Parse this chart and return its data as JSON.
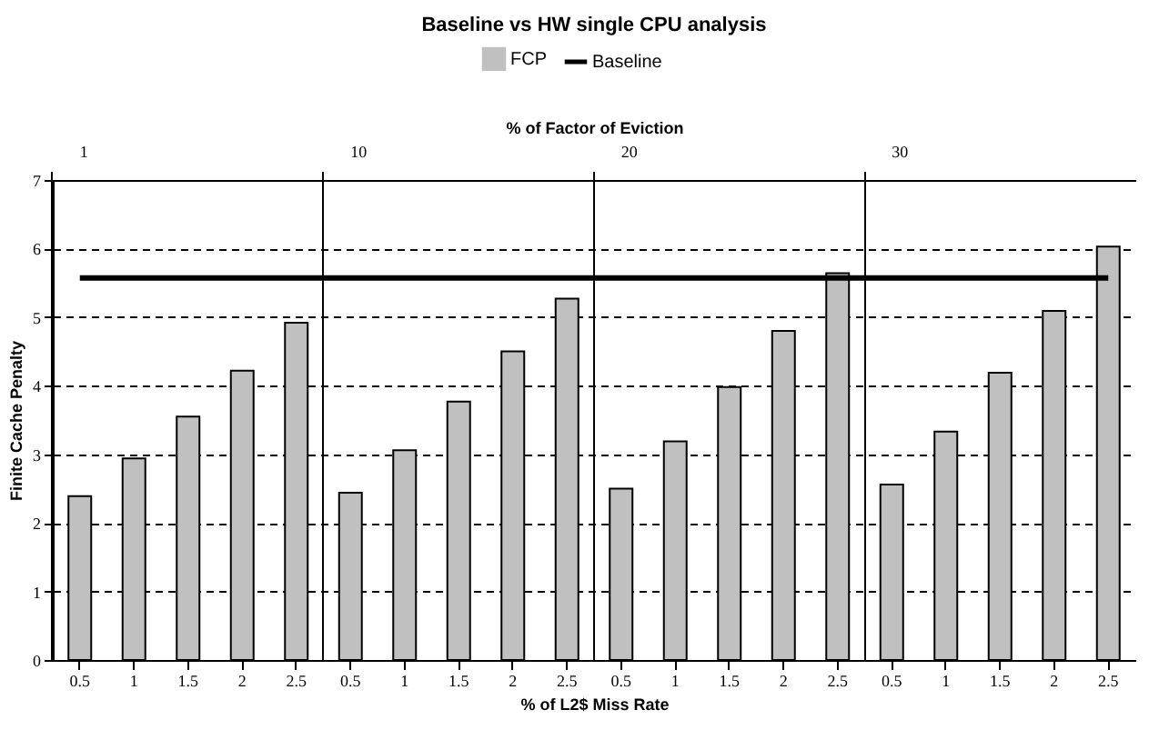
{
  "chart_data": {
    "type": "bar",
    "title": "Baseline vs HW single CPU analysis",
    "categories": [
      "0.5",
      "1",
      "1.5",
      "2",
      "2.5",
      "0.5",
      "1",
      "1.5",
      "2",
      "2.5",
      "0.5",
      "1",
      "1.5",
      "2",
      "2.5",
      "0.5",
      "1",
      "1.5",
      "2",
      "2.5"
    ],
    "series": [
      {
        "name": "FCP",
        "color": "#c0c0c0",
        "values": [
          2.39,
          2.94,
          3.55,
          4.22,
          4.92,
          2.44,
          3.06,
          3.77,
          4.5,
          5.27,
          2.5,
          3.19,
          3.98,
          4.8,
          5.64,
          2.56,
          3.33,
          4.19,
          5.09,
          6.03
        ]
      },
      {
        "name": "Baseline",
        "type": "line",
        "color": "#000000",
        "values": [
          5.57,
          5.57,
          5.57,
          5.57,
          5.57,
          5.57,
          5.57,
          5.57,
          5.57,
          5.57,
          5.57,
          5.57,
          5.57,
          5.57,
          5.57,
          5.57,
          5.57,
          5.57,
          5.57,
          5.57
        ]
      }
    ],
    "xlabel": "% of L2$ Miss Rate",
    "ylabel": "Finite Cache Penalty",
    "x2label": "% of Factor of Eviction",
    "annotations": [
      "1",
      "10",
      "20",
      "30"
    ],
    "ylim": [
      0,
      7
    ],
    "yticks": [
      0,
      1,
      2,
      3,
      4,
      5,
      6,
      7
    ],
    "grid": "y",
    "legend": "top",
    "marker": "none",
    "line_style": "solid"
  }
}
